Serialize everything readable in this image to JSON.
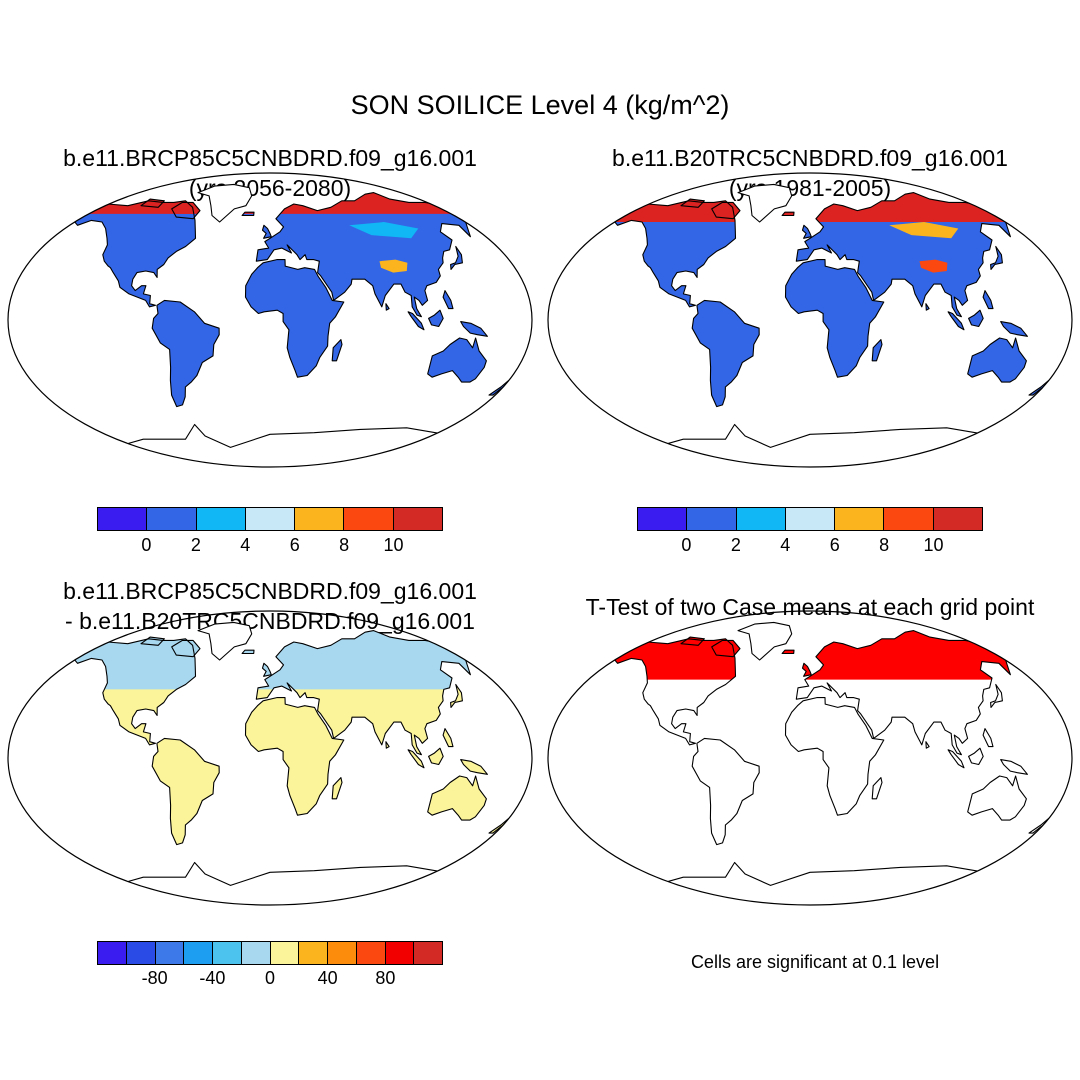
{
  "main_title": "SON SOILICE Level 4 (kg/m^2)",
  "panels": [
    {
      "title_line1": "b.e11.BRCP85C5CNBDRD.f09_g16.001",
      "title_line2": "(yrs 2056-2080)",
      "land_fill": "#3366e6",
      "high_lat_fill": "#dd2222"
    },
    {
      "title_line1": "b.e11.B20TRC5CNBDRD.f09_g16.001",
      "title_line2": "(yrs 1981-2005)",
      "land_fill": "#3366e6",
      "high_lat_fill": "#dd2222"
    },
    {
      "title_line1": "b.e11.BRCP85C5CNBDRD.f09_g16.001",
      "title_line2": "- b.e11.B20TRC5CNBDRD.f09_g16.001",
      "land_fill": "#fbf49a",
      "high_lat_fill": "#a8d8f0"
    },
    {
      "title_line1": "T-Test of two Case means at each grid point",
      "title_line2": "",
      "land_fill": "#ffffff",
      "high_lat_fill": "#ff0000"
    }
  ],
  "colorbars": {
    "absolute": {
      "colors": [
        "#3a1bf0",
        "#3366e6",
        "#11b6f5",
        "#c8e8f8",
        "#fbb41e",
        "#fb4810",
        "#d42a26"
      ],
      "labels": [
        "0",
        "2",
        "4",
        "6",
        "8",
        "10"
      ]
    },
    "difference": {
      "colors": [
        "#3a1bf0",
        "#2b4be6",
        "#3d79e8",
        "#1d9ef0",
        "#4cc3ee",
        "#a8d8f0",
        "#fbf49a",
        "#fbb41e",
        "#fb8c0c",
        "#fb4810",
        "#f20000",
        "#d42a26"
      ],
      "labels": [
        "-80",
        "-40",
        "0",
        "40",
        "80"
      ]
    }
  },
  "significance_note": "Cells are significant at 0.1 level"
}
